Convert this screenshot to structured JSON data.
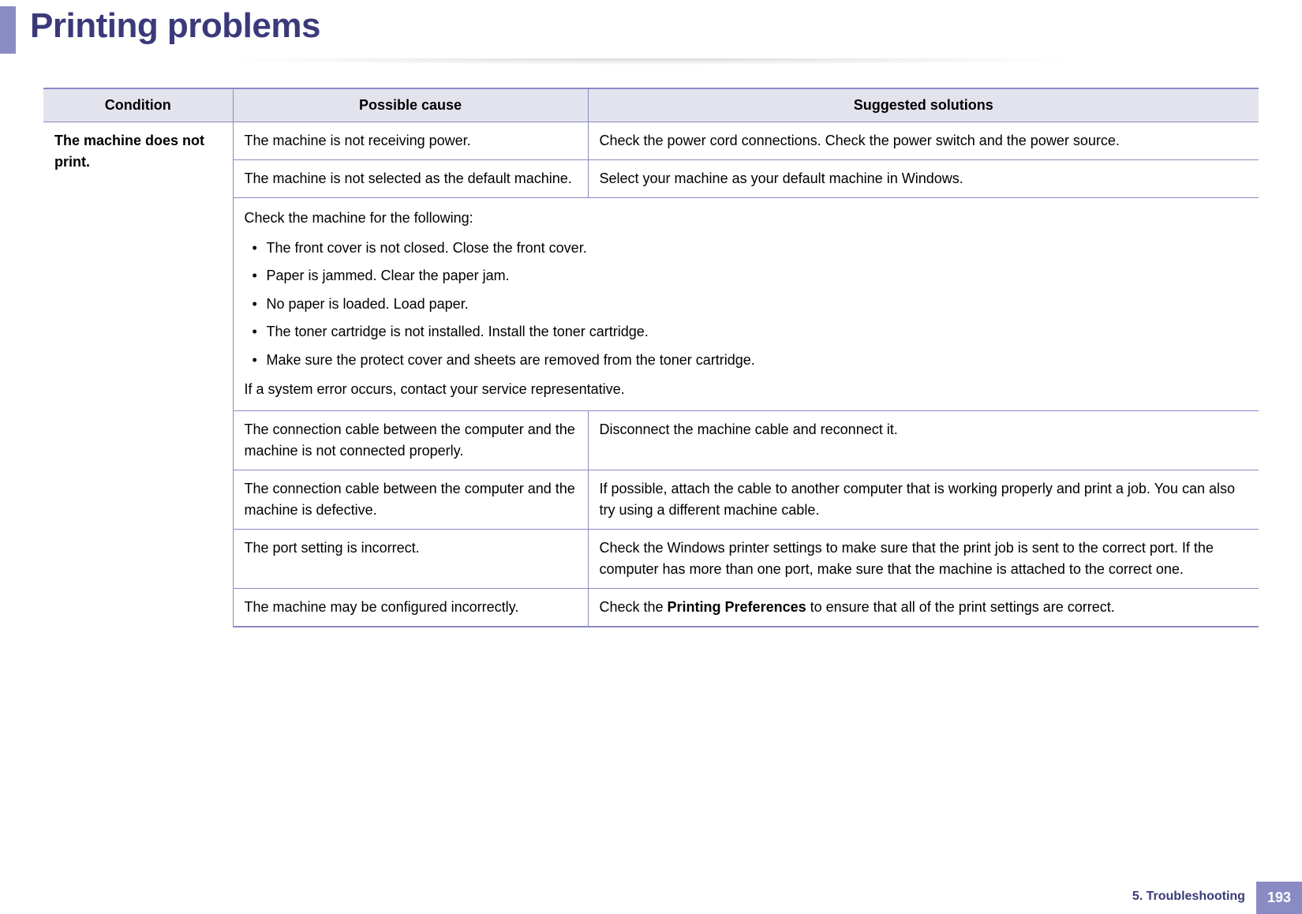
{
  "colors": {
    "accent": "#8a8ac4",
    "header_bg": "#e3e3ee",
    "border": "#8a8ac4",
    "title_text": "#3a3a7a",
    "footer_text": "#3a3a7a",
    "page_bg": "#ffffff"
  },
  "title": "Printing problems",
  "table": {
    "columns": [
      "Condition",
      "Possible cause",
      "Suggested solutions"
    ],
    "condition": "The machine does not print.",
    "rows": [
      {
        "cause": "The machine is not receiving power.",
        "solution": "Check the power cord connections. Check the power switch and the power source."
      },
      {
        "cause": "The machine is not selected as the default machine.",
        "solution": "Select your machine as your default machine in Windows."
      }
    ],
    "check_intro": "Check the machine for the following:",
    "check_items": [
      "The front cover is not closed. Close the front cover.",
      "Paper is jammed. Clear the paper jam.",
      "No paper is loaded. Load paper.",
      "The toner cartridge is not installed. Install the toner cartridge.",
      "Make sure the protect cover and sheets are removed from the toner cartridge."
    ],
    "check_outro": "If a system error occurs, contact your service representative.",
    "rows2": [
      {
        "cause": "The connection cable between the computer and the machine is not connected properly.",
        "solution": "Disconnect the machine cable and reconnect it."
      },
      {
        "cause": "The connection cable between the computer and the machine is defective.",
        "solution": "If possible, attach the cable to another computer that is working properly and print a job. You can also try using a different machine cable."
      },
      {
        "cause": "The port setting is incorrect.",
        "solution": "Check the Windows printer settings to make sure that the print job is sent to the correct port. If the computer has more than one port, make sure that the machine is attached to the correct one."
      }
    ],
    "last_row": {
      "cause": "The machine may be configured incorrectly.",
      "solution_pre": "Check the ",
      "solution_bold": "Printing Preferences",
      "solution_post": " to ensure that all of the print settings are correct."
    }
  },
  "footer": {
    "chapter": "5.  Troubleshooting",
    "page": "193"
  }
}
